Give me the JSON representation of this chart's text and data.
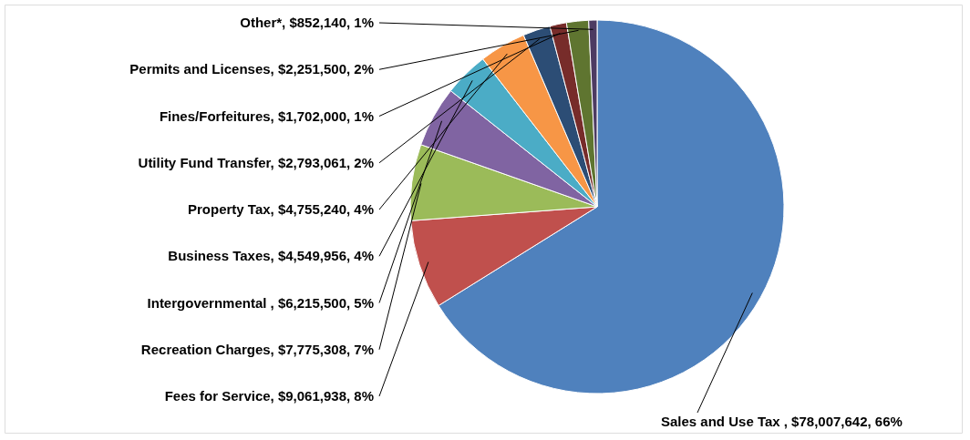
{
  "chart_data": {
    "type": "pie",
    "categories": [
      "Sales and Use Tax ",
      "Fees for Service",
      "Recreation Charges",
      "Intergovernmental ",
      "Business Taxes",
      "Property Tax",
      "Utility Fund Transfer",
      "Fines/Forfeitures",
      "Permits and Licenses",
      "Other*"
    ],
    "values": [
      78007642,
      9061938,
      7775308,
      6215500,
      4549956,
      4755240,
      2793061,
      1702000,
      2251500,
      852140
    ],
    "value_labels": [
      "$78,007,642, 66%",
      "$9,061,938, 8%",
      "$7,775,308, 7%",
      "$6,215,500, 5%",
      "$4,549,956, 4%",
      "$4,755,240, 4%",
      "$2,793,061, 2%",
      "$1,702,000, 1%",
      "$2,251,500, 2%",
      "$852,140, 1%"
    ],
    "colors": [
      "#4f81bd",
      "#c0504d",
      "#9bbb59",
      "#8064a2",
      "#4bacc6",
      "#f79646",
      "#2c4d75",
      "#772c2a",
      "#5f7530",
      "#4d3b62"
    ]
  }
}
